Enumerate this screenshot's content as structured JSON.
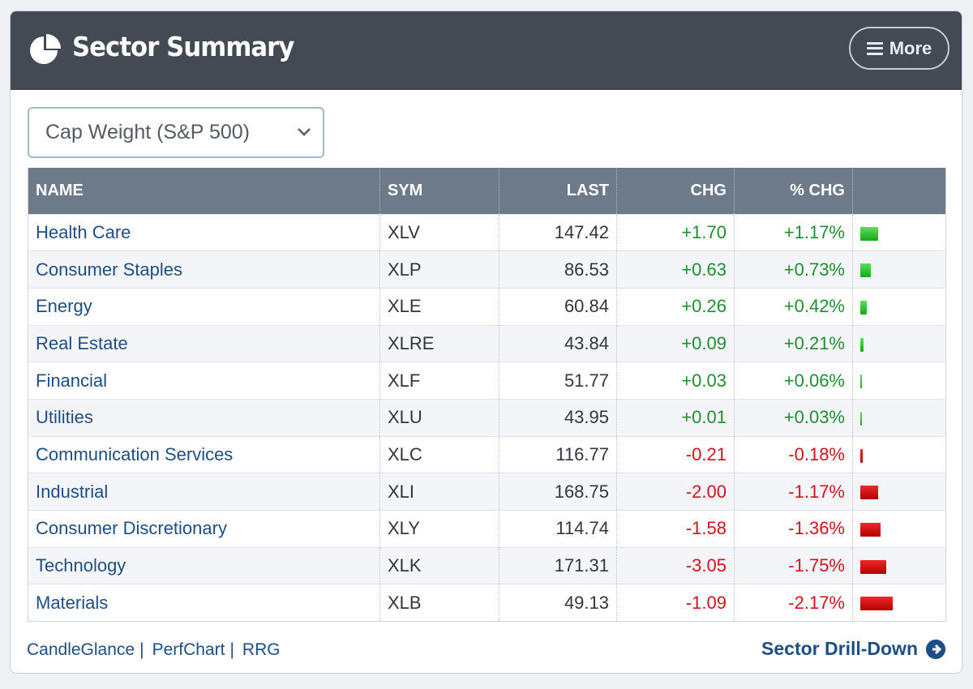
{
  "header": {
    "title": "Sector Summary",
    "icon": "pie-chart-icon",
    "more_label": "More"
  },
  "weighting": {
    "selected": "Cap Weight (S&P 500)"
  },
  "table": {
    "columns": [
      "NAME",
      "SYM",
      "LAST",
      "CHG",
      "% CHG",
      ""
    ],
    "rows": [
      {
        "name": "Health Care",
        "sym": "XLV",
        "last": "147.42",
        "chg": "+1.70",
        "pct": "+1.17%",
        "pct_value": 1.17
      },
      {
        "name": "Consumer Staples",
        "sym": "XLP",
        "last": "86.53",
        "chg": "+0.63",
        "pct": "+0.73%",
        "pct_value": 0.73
      },
      {
        "name": "Energy",
        "sym": "XLE",
        "last": "60.84",
        "chg": "+0.26",
        "pct": "+0.42%",
        "pct_value": 0.42
      },
      {
        "name": "Real Estate",
        "sym": "XLRE",
        "last": "43.84",
        "chg": "+0.09",
        "pct": "+0.21%",
        "pct_value": 0.21
      },
      {
        "name": "Financial",
        "sym": "XLF",
        "last": "51.77",
        "chg": "+0.03",
        "pct": "+0.06%",
        "pct_value": 0.06
      },
      {
        "name": "Utilities",
        "sym": "XLU",
        "last": "43.95",
        "chg": "+0.01",
        "pct": "+0.03%",
        "pct_value": 0.03
      },
      {
        "name": "Communication Services",
        "sym": "XLC",
        "last": "116.77",
        "chg": "-0.21",
        "pct": "-0.18%",
        "pct_value": -0.18
      },
      {
        "name": "Industrial",
        "sym": "XLI",
        "last": "168.75",
        "chg": "-2.00",
        "pct": "-1.17%",
        "pct_value": -1.17
      },
      {
        "name": "Consumer Discretionary",
        "sym": "XLY",
        "last": "114.74",
        "chg": "-1.58",
        "pct": "-1.36%",
        "pct_value": -1.36
      },
      {
        "name": "Technology",
        "sym": "XLK",
        "last": "171.31",
        "chg": "-3.05",
        "pct": "-1.75%",
        "pct_value": -1.75
      },
      {
        "name": "Materials",
        "sym": "XLB",
        "last": "49.13",
        "chg": "-1.09",
        "pct": "-2.17%",
        "pct_value": -2.17
      }
    ]
  },
  "footer": {
    "links": [
      "CandleGlance",
      "PerfChart",
      "RRG"
    ],
    "drill_label": "Sector Drill-Down",
    "drill_icon": "arrow-circle-right-icon"
  },
  "colors": {
    "header_bg": "#444a54",
    "table_header_bg": "#6d7a8a",
    "link": "#1d4e86",
    "positive": "#1f8f2f",
    "negative": "#d4121c"
  }
}
